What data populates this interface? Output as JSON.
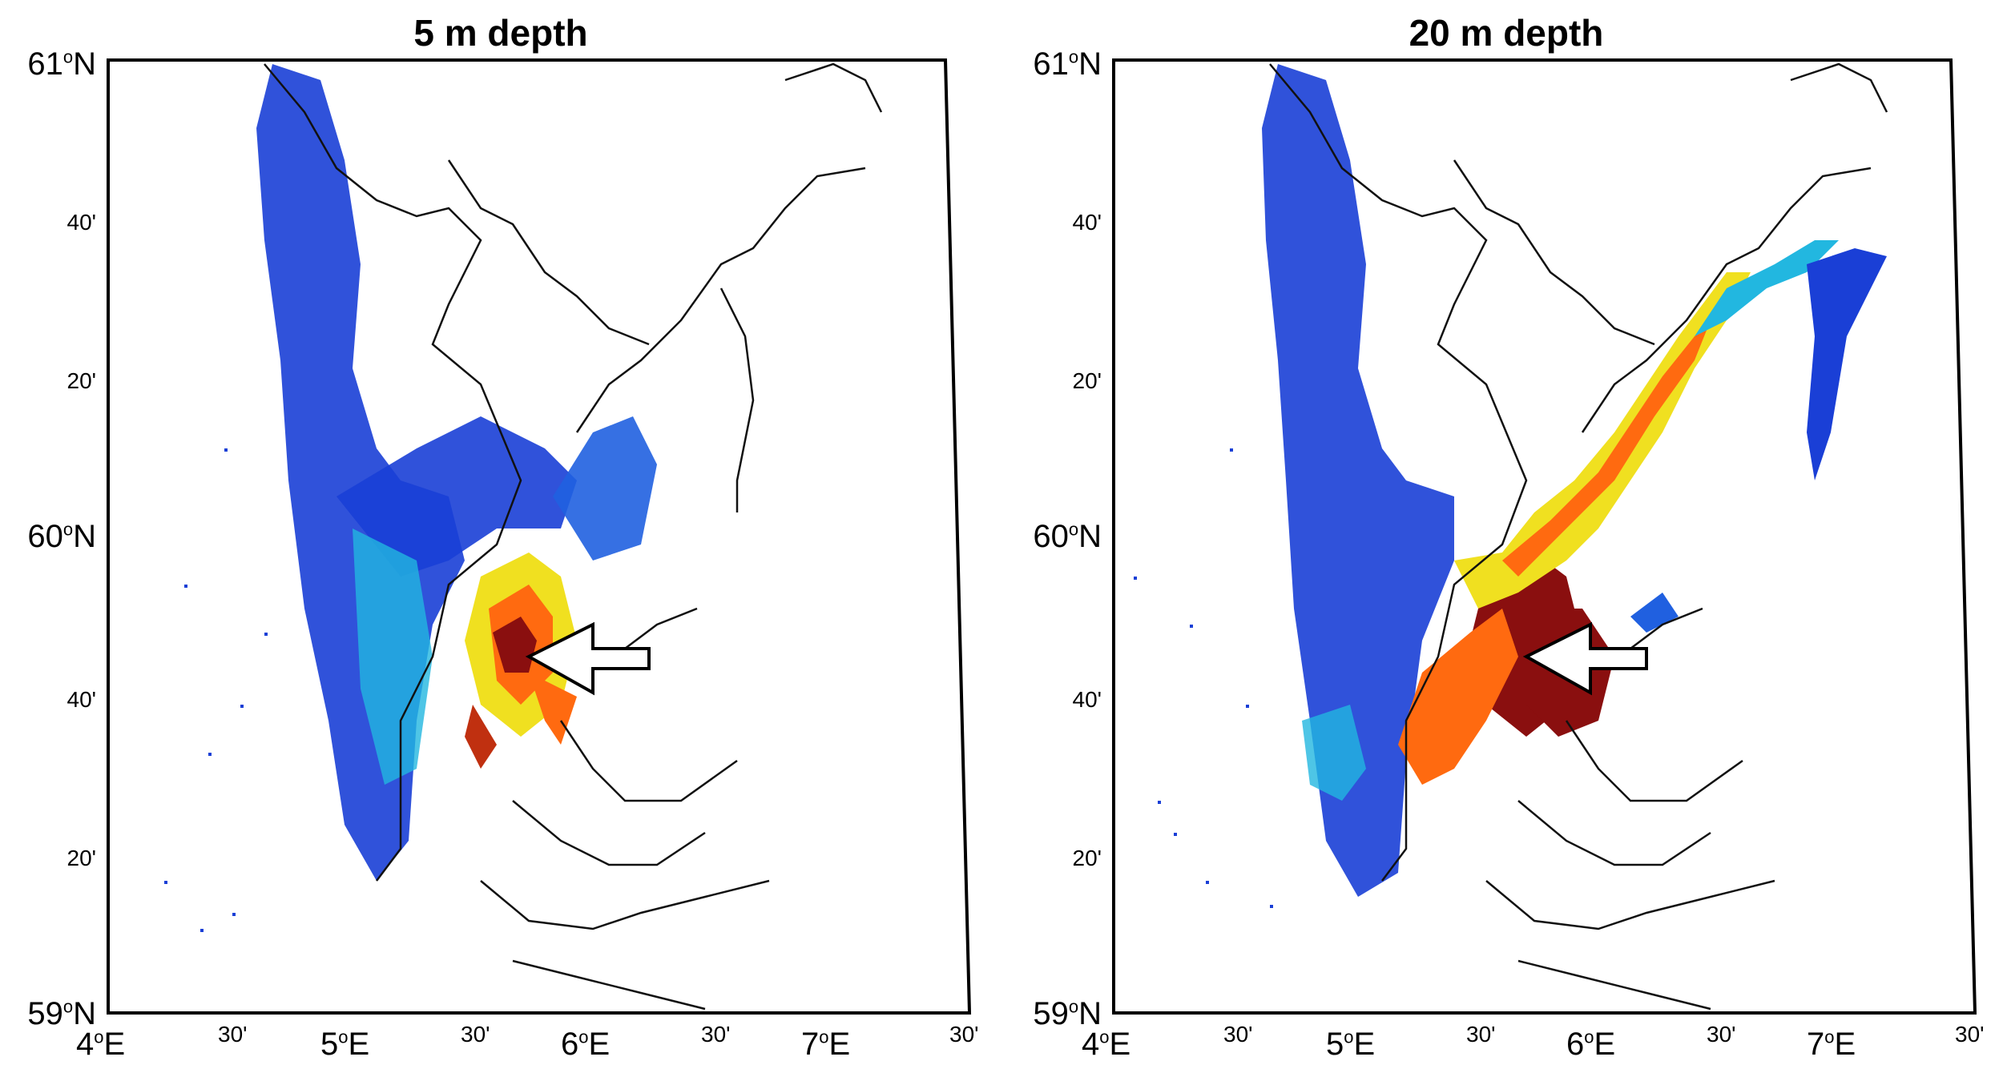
{
  "panels": [
    {
      "id": "left",
      "title": "5 m depth",
      "lat_labels": [
        {
          "text": "61",
          "suffix": "N",
          "sup": "o",
          "kind": "major"
        },
        {
          "text": "40'",
          "kind": "minor"
        },
        {
          "text": "20'",
          "kind": "minor"
        },
        {
          "text": "60",
          "suffix": "N",
          "sup": "o",
          "kind": "major"
        },
        {
          "text": "40'",
          "kind": "minor"
        },
        {
          "text": "20'",
          "kind": "minor"
        },
        {
          "text": "59",
          "suffix": "N",
          "sup": "o",
          "kind": "major"
        }
      ],
      "lon_labels": [
        {
          "text": "4",
          "suffix": "E",
          "sup": "o",
          "kind": "major"
        },
        {
          "text": "30'",
          "kind": "minor"
        },
        {
          "text": "5",
          "suffix": "E",
          "sup": "o",
          "kind": "major"
        },
        {
          "text": "30'",
          "kind": "minor"
        },
        {
          "text": "6",
          "suffix": "E",
          "sup": "o",
          "kind": "major"
        },
        {
          "text": "30'",
          "kind": "minor"
        },
        {
          "text": "7",
          "suffix": "E",
          "sup": "o",
          "kind": "major"
        },
        {
          "text": "30'",
          "kind": "minor"
        }
      ]
    },
    {
      "id": "right",
      "title": "20 m depth",
      "lat_labels": [
        {
          "text": "61",
          "suffix": "N",
          "sup": "o",
          "kind": "major"
        },
        {
          "text": "40'",
          "kind": "minor"
        },
        {
          "text": "20'",
          "kind": "minor"
        },
        {
          "text": "60",
          "suffix": "N",
          "sup": "o",
          "kind": "major"
        },
        {
          "text": "40'",
          "kind": "minor"
        },
        {
          "text": "20'",
          "kind": "minor"
        },
        {
          "text": "59",
          "suffix": "N",
          "sup": "o",
          "kind": "major"
        }
      ],
      "lon_labels": [
        {
          "text": "4",
          "suffix": "E",
          "sup": "o",
          "kind": "major"
        },
        {
          "text": "30'",
          "kind": "minor"
        },
        {
          "text": "5",
          "suffix": "E",
          "sup": "o",
          "kind": "major"
        },
        {
          "text": "30'",
          "kind": "minor"
        },
        {
          "text": "6",
          "suffix": "E",
          "sup": "o",
          "kind": "major"
        },
        {
          "text": "30'",
          "kind": "minor"
        },
        {
          "text": "7",
          "suffix": "E",
          "sup": "o",
          "kind": "major"
        },
        {
          "text": "30'",
          "kind": "minor"
        }
      ]
    }
  ],
  "colors": {
    "low": "#1a3fd6",
    "mid_low": "#22b7e0",
    "mid": "#f0e020",
    "mid_high": "#ff6a10",
    "high": "#8a0f0f",
    "coast": "#111111",
    "frame": "#000000"
  },
  "icons": {
    "arrow": "arrow-left-icon"
  }
}
